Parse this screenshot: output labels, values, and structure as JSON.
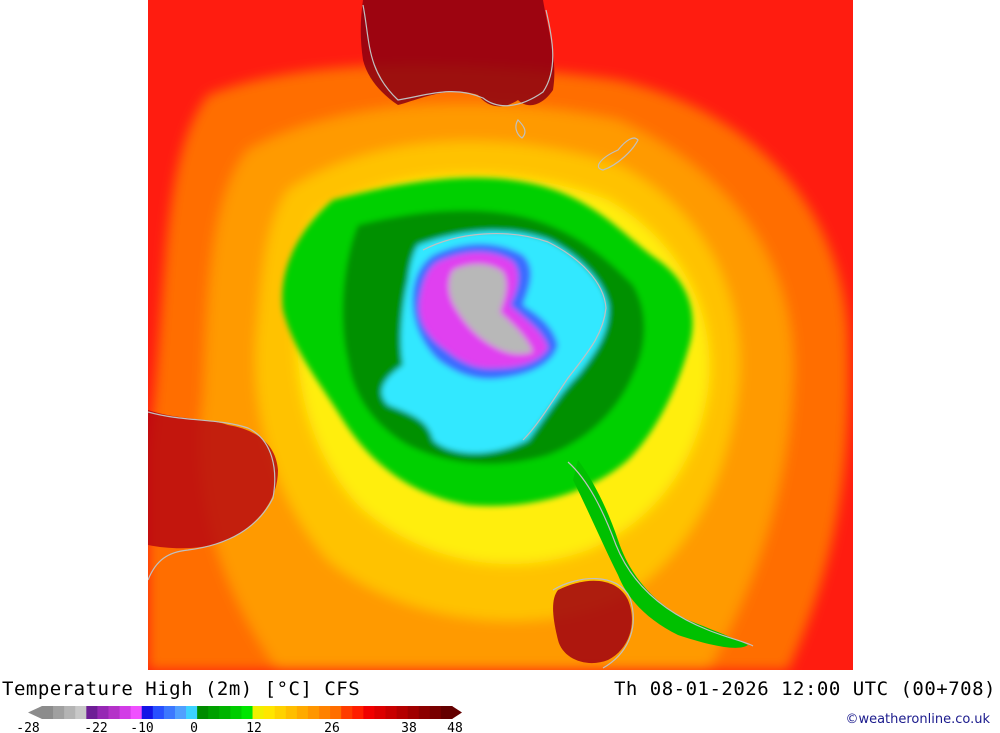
{
  "map": {
    "title": "Temperature High (2m) [°C] CFS",
    "datetime": "Th 08-01-2026 12:00 UTC (00+708)",
    "credit": "©weatheronline.co.uk",
    "colors": {
      "ocean_hot": "#ff1010",
      "dark_red": "#a00010",
      "orange": "#ff8c00",
      "light_orange": "#ffb400",
      "yellow": "#ffee00",
      "green": "#00c800",
      "dark_green": "#008c00",
      "cyan": "#30e8ff",
      "blue": "#3070ff",
      "magenta": "#e040f0",
      "grey": "#b8b8b8",
      "coast": "#c0c0c0"
    }
  },
  "legend": {
    "tick_labels": [
      "-28",
      "-22",
      "-10",
      "0",
      "12",
      "26",
      "38",
      "48"
    ],
    "colors": [
      "#8c8c8c",
      "#a0a0a0",
      "#b4b4b4",
      "#c8c8c8",
      "#6e1e96",
      "#9628b4",
      "#b432c8",
      "#d23ce6",
      "#f050ff",
      "#1414e6",
      "#2850ff",
      "#3c78ff",
      "#50a0ff",
      "#3cd2ff",
      "#008c00",
      "#00a000",
      "#00b400",
      "#00cd00",
      "#00e600",
      "#f0f000",
      "#ffe600",
      "#ffd200",
      "#ffbe00",
      "#ffaa00",
      "#ff9600",
      "#ff8200",
      "#ff6e00",
      "#ff3c00",
      "#ff1e00",
      "#f00000",
      "#dc0000",
      "#c80000",
      "#b40000",
      "#a00000",
      "#8c0000",
      "#780000",
      "#640000"
    ]
  }
}
